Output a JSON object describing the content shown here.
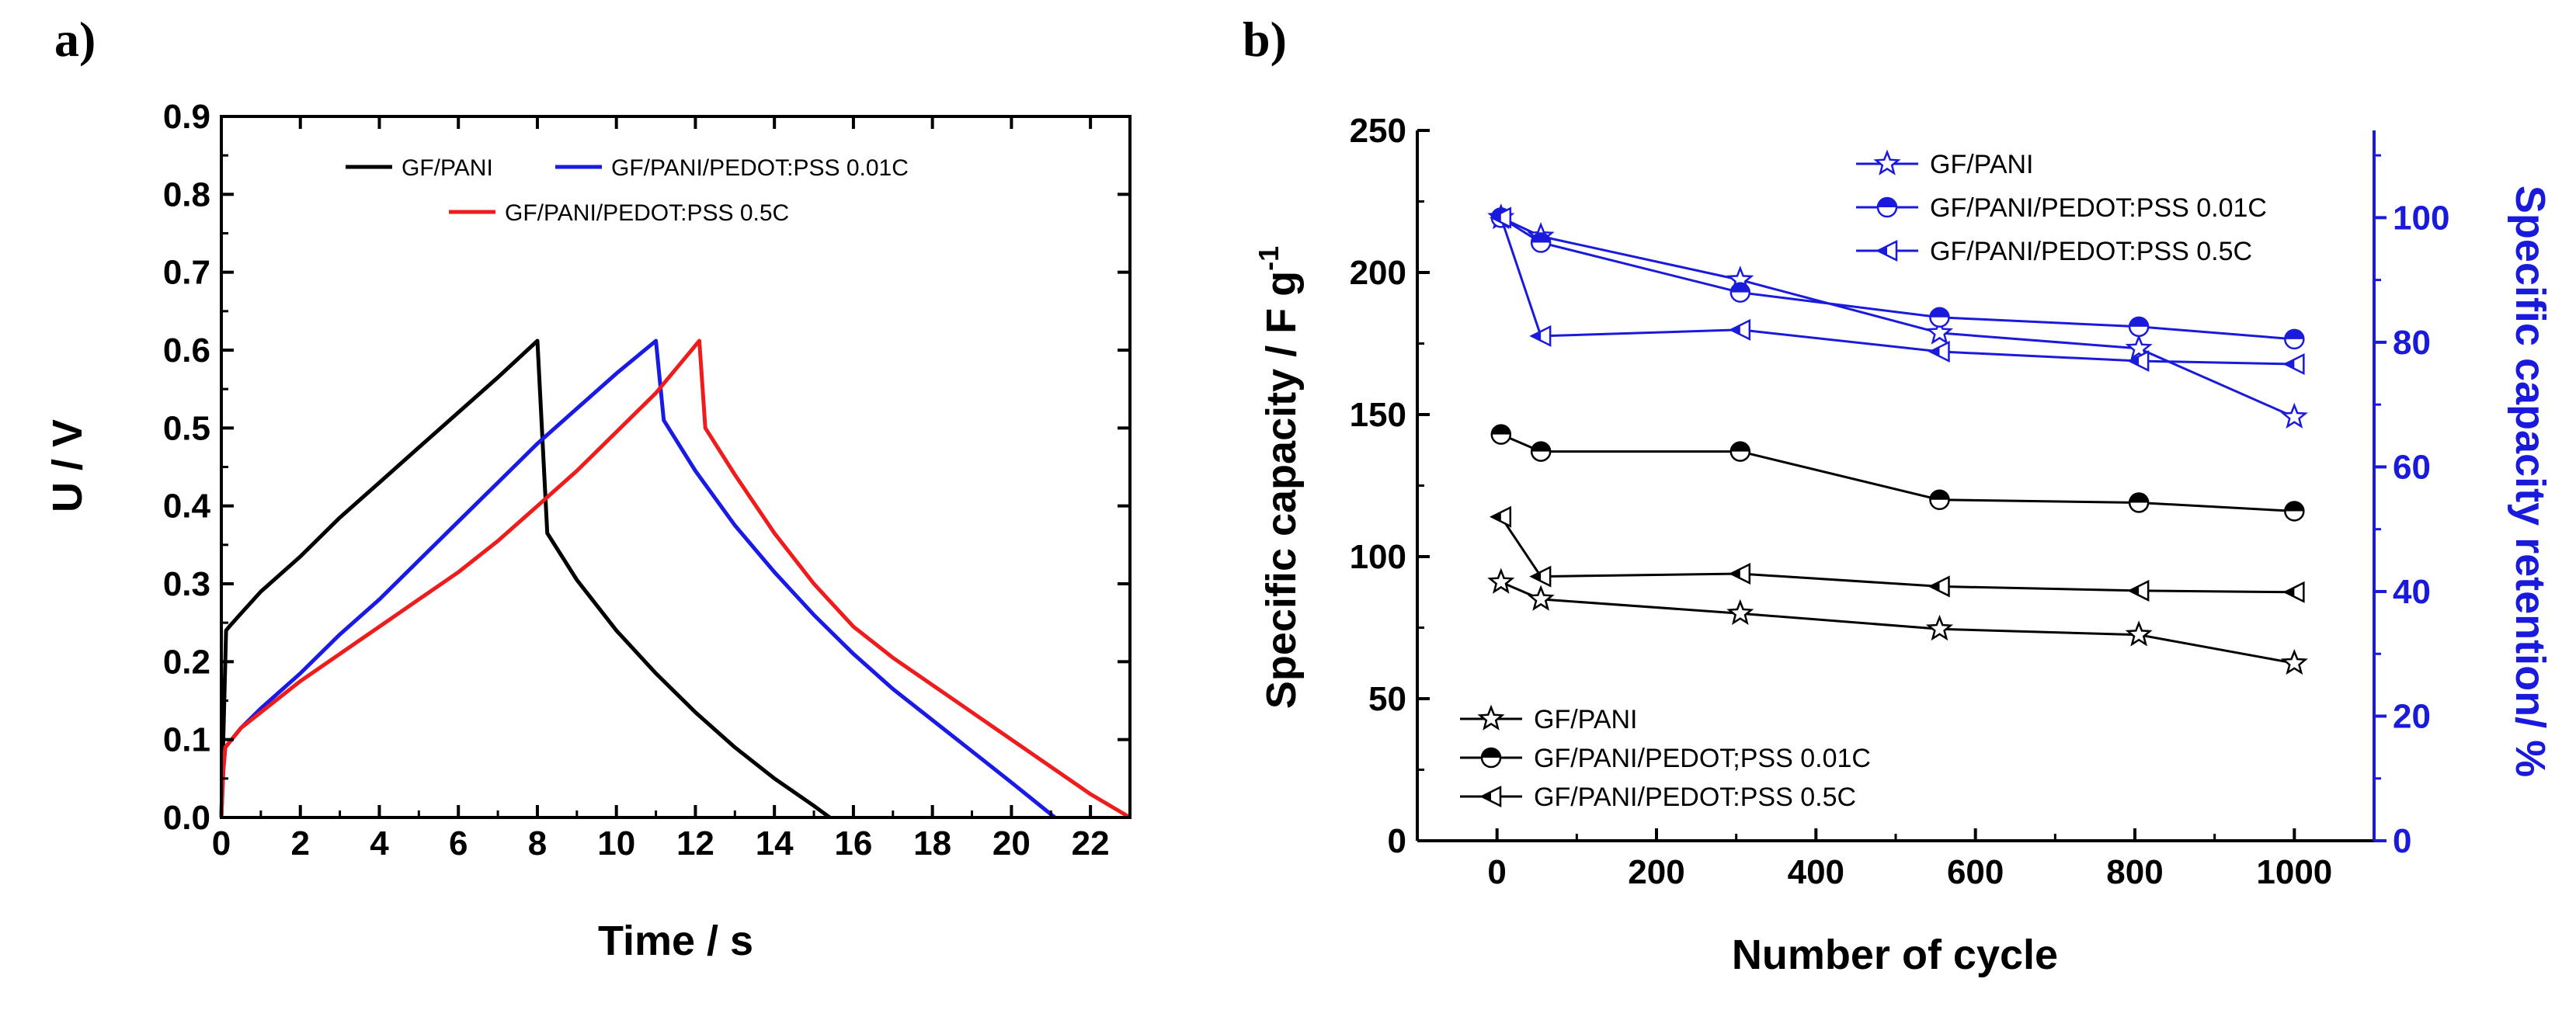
{
  "panels": {
    "a": "a)",
    "b": "b)"
  },
  "chart_data": [
    {
      "type": "line",
      "title": "",
      "xlabel": "Time / s",
      "ylabel": "U / V",
      "xlim": [
        0,
        23
      ],
      "ylim": [
        0,
        0.9
      ],
      "xticks": [
        "0",
        "2",
        "4",
        "6",
        "8",
        "10",
        "12",
        "14",
        "16",
        "18",
        "20",
        "22"
      ],
      "yticks": [
        "0.0",
        "0.1",
        "0.2",
        "0.3",
        "0.4",
        "0.5",
        "0.6",
        "0.7",
        "0.8",
        "0.9"
      ],
      "series": [
        {
          "name": "GF/PANI",
          "color": "#000000",
          "x": [
            0,
            0.05,
            0.1,
            0.12,
            0.2,
            0.5,
            1,
            2,
            3,
            4,
            5,
            6,
            7,
            8,
            8.25,
            9,
            10,
            11,
            12,
            13,
            14,
            15,
            15.4
          ],
          "y": [
            0,
            0.1,
            0.2,
            0.24,
            0.245,
            0.262,
            0.29,
            0.335,
            0.385,
            0.43,
            0.475,
            0.52,
            0.565,
            0.612,
            0.365,
            0.305,
            0.24,
            0.185,
            0.135,
            0.09,
            0.05,
            0.015,
            0
          ]
        },
        {
          "name": "GF/PANI/PEDOT:PSS 0.01C",
          "color": "#1a1ae6",
          "x": [
            0,
            0.05,
            0.1,
            0.5,
            1,
            2,
            3,
            4,
            5,
            6,
            7,
            8,
            9,
            10,
            11,
            11.2,
            12,
            13,
            14,
            15,
            16,
            17,
            18,
            19,
            20,
            21.1
          ],
          "y": [
            0,
            0.06,
            0.09,
            0.115,
            0.14,
            0.185,
            0.235,
            0.28,
            0.33,
            0.38,
            0.43,
            0.48,
            0.525,
            0.57,
            0.612,
            0.51,
            0.445,
            0.375,
            0.315,
            0.26,
            0.21,
            0.165,
            0.125,
            0.085,
            0.045,
            0
          ]
        },
        {
          "name": "GF/PANI/PEDOT:PSS 0.5C",
          "color": "#ee1c1c",
          "x": [
            0,
            0.05,
            0.1,
            0.5,
            1,
            2,
            3,
            4,
            5,
            6,
            7,
            8,
            9,
            10,
            11,
            12.1,
            12.25,
            13,
            14,
            15,
            16,
            17,
            18,
            19,
            20,
            21,
            22,
            23
          ],
          "y": [
            0,
            0.06,
            0.09,
            0.115,
            0.135,
            0.175,
            0.21,
            0.245,
            0.28,
            0.315,
            0.355,
            0.4,
            0.445,
            0.495,
            0.545,
            0.612,
            0.5,
            0.44,
            0.365,
            0.3,
            0.245,
            0.205,
            0.17,
            0.135,
            0.1,
            0.065,
            0.03,
            0
          ]
        }
      ],
      "legend": {
        "placement": "top-center",
        "entries": [
          "GF/PANI",
          "GF/PANI/PEDOT:PSS 0.01C",
          "GF/PANI/PEDOT:PSS 0.5C"
        ]
      }
    },
    {
      "type": "line",
      "title": "",
      "xlabel": "Number of cycle",
      "ylabel": "Specific capacity / F g",
      "ylabel_sup": "-1",
      "y2label": "Specific capacity retention/ %",
      "xlim": [
        -100,
        1100
      ],
      "ylim": [
        0,
        250
      ],
      "y2lim": [
        0,
        114
      ],
      "xticks": [
        0,
        200,
        400,
        600,
        800,
        1000
      ],
      "yticks": [
        0,
        50,
        100,
        150,
        200,
        250
      ],
      "y2ticks": [
        0,
        20,
        40,
        60,
        80,
        100
      ],
      "x": [
        5,
        55,
        305,
        555,
        805,
        1000
      ],
      "capacity_series": [
        {
          "name": "GF/PANI",
          "marker": "star",
          "values": [
            91,
            85,
            80,
            74.5,
            72.5,
            62.5
          ]
        },
        {
          "name": "GF/PANI/PEDOT;PSS 0.01C",
          "marker": "half-circle",
          "values": [
            143,
            137,
            137,
            120,
            119,
            116
          ]
        },
        {
          "name": "GF/PANI/PEDOT:PSS 0.5C",
          "marker": "left-triangle",
          "values": [
            114,
            93,
            94,
            89.5,
            88,
            87.5
          ]
        }
      ],
      "retention_series": [
        {
          "name": "GF/PANI",
          "marker": "star",
          "values": [
            100,
            97,
            90,
            81.5,
            79,
            68
          ]
        },
        {
          "name": "GF/PANI/PEDOT:PSS 0.01C",
          "marker": "half-circle",
          "values": [
            100,
            96,
            88,
            84,
            82.5,
            80.5
          ]
        },
        {
          "name": "GF/PANI/PEDOT:PSS 0.5C",
          "marker": "left-triangle",
          "values": [
            100,
            81,
            82,
            78.5,
            77,
            76.5
          ]
        }
      ],
      "legend_top": {
        "placement": "top-center",
        "entries": [
          "GF/PANI",
          "GF/PANI/PEDOT:PSS 0.01C",
          "GF/PANI/PEDOT:PSS 0.5C"
        ]
      },
      "legend_bottom": {
        "placement": "bottom-left",
        "entries": [
          "GF/PANI",
          "GF/PANI/PEDOT;PSS 0.01C",
          "GF/PANI/PEDOT:PSS 0.5C"
        ]
      },
      "colors": {
        "capacity": "#000000",
        "retention": "#1a1adc"
      }
    }
  ]
}
